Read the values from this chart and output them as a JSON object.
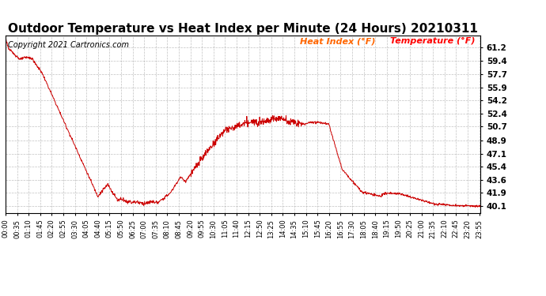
{
  "title": "Outdoor Temperature vs Heat Index per Minute (24 Hours) 20210311",
  "copyright_text": "Copyright 2021 Cartronics.com",
  "legend_heat_index": "Heat Index (°F)",
  "legend_temperature": "Temperature (°F)",
  "legend_heat_index_color": "#ff6600",
  "legend_temperature_color": "#ff0000",
  "line_color": "#cc0000",
  "background_color": "#ffffff",
  "grid_color": "#999999",
  "yticks": [
    40.1,
    41.9,
    43.6,
    45.4,
    47.1,
    48.9,
    50.7,
    52.4,
    54.2,
    55.9,
    57.7,
    59.4,
    61.2
  ],
  "ymin": 39.2,
  "ymax": 62.8,
  "copyright_color": "#000000",
  "title_fontsize": 11,
  "copyright_fontsize": 7,
  "legend_fontsize": 8
}
